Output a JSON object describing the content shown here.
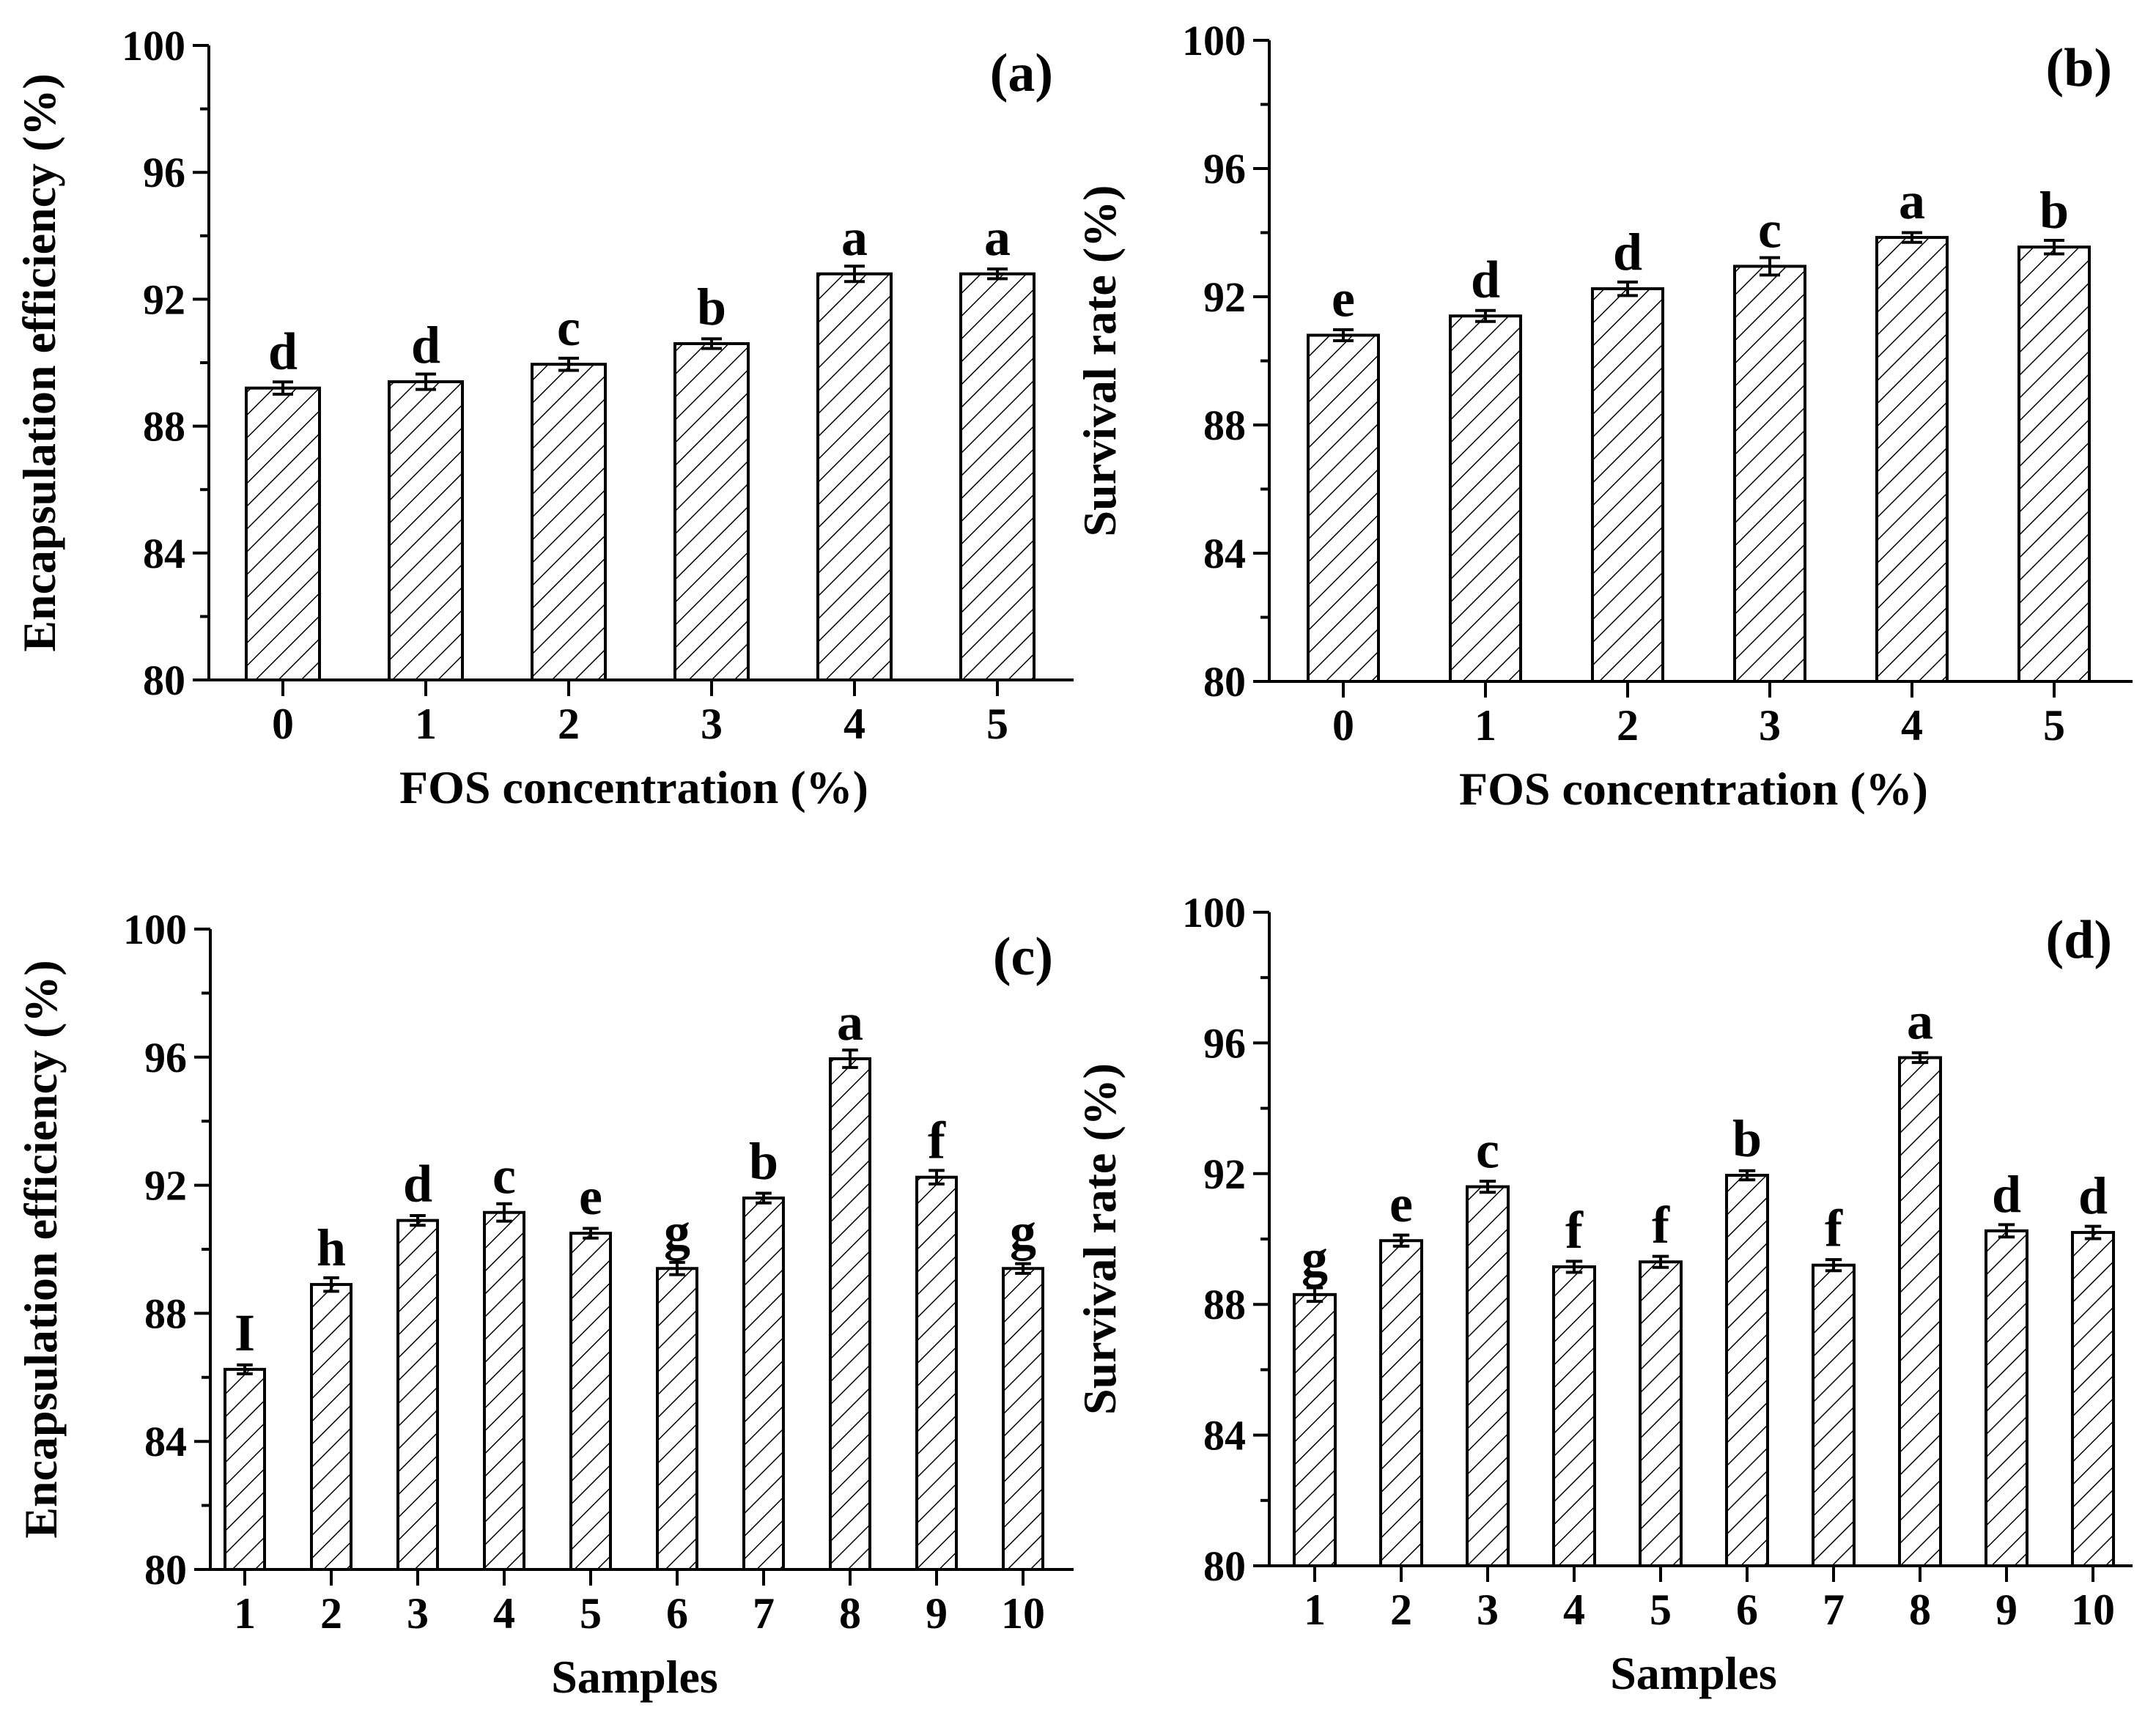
{
  "chart_data": [
    {
      "type": "bar",
      "panel_label": "(a)",
      "categories": [
        "0",
        "1",
        "2",
        "3",
        "4",
        "5"
      ],
      "values": [
        89.2,
        89.4,
        89.95,
        90.6,
        92.8,
        92.8
      ],
      "errors": [
        0.1,
        0.15,
        0.1,
        0.06,
        0.15,
        0.06
      ],
      "letters": [
        "d",
        "d",
        "c",
        "b",
        "a",
        "a"
      ],
      "xlabel": "FOS concentration (%)",
      "ylabel": "Encapsulation efficiency (%)",
      "ylim": [
        80,
        100
      ],
      "yticks": [
        80,
        84,
        88,
        92,
        96,
        100
      ],
      "grid": false
    },
    {
      "type": "bar",
      "panel_label": "(b)",
      "categories": [
        "0",
        "1",
        "2",
        "3",
        "4",
        "5"
      ],
      "values": [
        90.8,
        91.4,
        92.25,
        92.95,
        93.85,
        93.55
      ],
      "errors": [
        0.08,
        0.08,
        0.12,
        0.18,
        0.06,
        0.12
      ],
      "letters": [
        "e",
        "d",
        "d",
        "c",
        "a",
        "b"
      ],
      "xlabel": "FOS concentration (%)",
      "ylabel": "Survival rate (%)",
      "ylim": [
        80,
        100
      ],
      "yticks": [
        80,
        84,
        88,
        92,
        96,
        100
      ],
      "grid": false
    },
    {
      "type": "bar",
      "panel_label": "(c)",
      "categories": [
        "1",
        "2",
        "3",
        "4",
        "5",
        "6",
        "7",
        "8",
        "9",
        "10"
      ],
      "values": [
        86.25,
        88.9,
        90.9,
        91.15,
        90.5,
        89.4,
        91.6,
        95.95,
        92.25,
        89.4
      ],
      "errors": [
        0.05,
        0.12,
        0.06,
        0.18,
        0.06,
        0.1,
        0.06,
        0.18,
        0.12,
        0.06
      ],
      "letters": [
        "I",
        "h",
        "d",
        "c",
        "e",
        "g",
        "b",
        "a",
        "f",
        "g"
      ],
      "xlabel": "Samples",
      "ylabel": "Encapsulation efficiency (%)",
      "ylim": [
        80,
        100
      ],
      "yticks": [
        80,
        84,
        88,
        92,
        96,
        100
      ],
      "grid": false
    },
    {
      "type": "bar",
      "panel_label": "(d)",
      "categories": [
        "1",
        "2",
        "3",
        "4",
        "5",
        "6",
        "7",
        "8",
        "9",
        "10"
      ],
      "values": [
        88.3,
        89.95,
        91.6,
        89.15,
        89.3,
        91.95,
        89.2,
        95.55,
        90.25,
        90.2
      ],
      "errors": [
        0.12,
        0.08,
        0.08,
        0.08,
        0.08,
        0.05,
        0.08,
        0.06,
        0.1,
        0.1
      ],
      "letters": [
        "g",
        "e",
        "c",
        "f",
        "f",
        "b",
        "f",
        "a",
        "d",
        "d"
      ],
      "xlabel": "Samples",
      "ylabel": "Survival rate (%)",
      "ylim": [
        80,
        100
      ],
      "yticks": [
        80,
        84,
        88,
        92,
        96,
        100
      ],
      "grid": false
    }
  ],
  "colors": {
    "bar_fill": "#ffffff",
    "bar_hatch": "#000000",
    "axis": "#000000"
  }
}
